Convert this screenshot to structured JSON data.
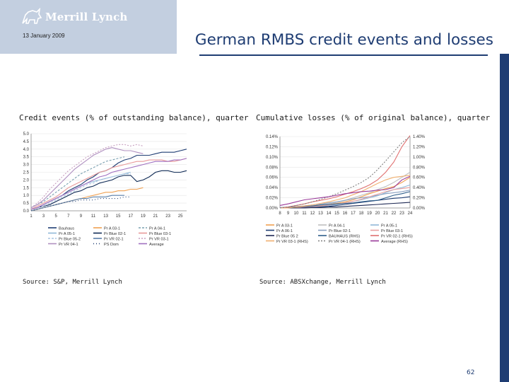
{
  "header": {
    "logo_text": "Merrill Lynch",
    "date": "13 January 2009",
    "title": "German RMBS credit events and losses"
  },
  "colors": {
    "brand_navy": "#1f3d73",
    "logo_bg": "#c3cfe0"
  },
  "left_caption": "Credit events (% of outstanding balance), quarter",
  "right_caption": "Cumulative losses (% of original balance), quarter",
  "left_source": "Source: S&P, Merrill Lynch",
  "right_source": "Source: ABSXchange, Merrill Lynch",
  "page_number": "62",
  "chart_data": [
    {
      "type": "line",
      "ylim": [
        0,
        5
      ],
      "x_ticks": [
        "1",
        "3",
        "5",
        "7",
        "9",
        "11",
        "13",
        "15",
        "17",
        "19",
        "21",
        "23",
        "25"
      ],
      "y_ticks": [
        "0.0",
        "0.5",
        "1.0",
        "1.5",
        "2.0",
        "2.5",
        "3.0",
        "3.5",
        "4.0",
        "4.5",
        "5.0"
      ],
      "legend_position": "bottom",
      "x": [
        1,
        2,
        3,
        4,
        5,
        6,
        7,
        8,
        9,
        10,
        11,
        12,
        13,
        14,
        15,
        16,
        17,
        18,
        19,
        20,
        21,
        22,
        23,
        24,
        25,
        26
      ],
      "series": [
        {
          "name": "Bauhaus",
          "color": "#1f3d73",
          "dash": "",
          "values": [
            0.1,
            0.2,
            0.4,
            0.6,
            0.8,
            1.0,
            1.3,
            1.5,
            1.7,
            2.0,
            2.2,
            2.5,
            2.6,
            2.8,
            3.1,
            3.3,
            3.4,
            3.6,
            3.6,
            3.6,
            3.7,
            3.8,
            3.8,
            3.8,
            3.9,
            4.0
          ]
        },
        {
          "name": "Pr A 03-1",
          "color": "#f0a050",
          "dash": "",
          "values": [
            0.0,
            0.1,
            0.2,
            0.3,
            0.4,
            0.5,
            0.6,
            0.7,
            0.8,
            0.9,
            1.0,
            1.1,
            1.2,
            1.2,
            1.3,
            1.3,
            1.4,
            1.4,
            1.5,
            null,
            null,
            null,
            null,
            null,
            null,
            null
          ]
        },
        {
          "name": "Pr A 04-1",
          "color": "#7aa0b0",
          "dash": "3 2",
          "values": [
            0.2,
            0.4,
            0.6,
            0.9,
            1.2,
            1.5,
            1.8,
            2.1,
            2.4,
            2.6,
            2.8,
            3.0,
            3.2,
            3.3,
            3.4,
            3.5,
            null,
            null,
            null,
            null,
            null,
            null,
            null,
            null,
            null,
            null
          ]
        },
        {
          "name": "Pr A 05-1",
          "color": "#8fb8d8",
          "dash": "",
          "values": [
            0.1,
            0.2,
            0.4,
            0.6,
            0.8,
            1.0,
            1.2,
            1.4,
            1.6,
            1.8,
            1.9,
            2.0,
            2.1,
            2.2,
            2.3,
            2.4,
            2.5,
            null,
            null,
            null,
            null,
            null,
            null,
            null,
            null,
            null
          ]
        },
        {
          "name": "Pr Blue 02-1",
          "color": "#0f2a55",
          "dash": "",
          "values": [
            0.1,
            0.2,
            0.3,
            0.4,
            0.6,
            0.8,
            1.0,
            1.2,
            1.3,
            1.5,
            1.6,
            1.8,
            1.9,
            2.0,
            2.2,
            2.3,
            2.3,
            1.9,
            2.0,
            2.2,
            2.5,
            2.6,
            2.6,
            2.5,
            2.5,
            2.6
          ]
        },
        {
          "name": "Pr Blue 03-1",
          "color": "#e89a9a",
          "dash": "",
          "values": [
            0.1,
            0.3,
            0.5,
            0.7,
            0.9,
            1.2,
            1.5,
            1.7,
            1.9,
            2.1,
            2.3,
            2.5,
            2.6,
            2.8,
            2.9,
            3.0,
            3.1,
            3.2,
            3.2,
            3.3,
            3.3,
            3.3,
            3.2,
            3.2,
            3.3,
            3.4
          ]
        },
        {
          "name": "Pr Blue 05-2",
          "color": "#a8c4e0",
          "dash": "3 2",
          "values": [
            0.1,
            0.2,
            0.3,
            0.5,
            0.7,
            0.9,
            1.1,
            1.3,
            1.5,
            1.7,
            1.8,
            2.0,
            2.1,
            2.2,
            2.3,
            2.4,
            2.4,
            null,
            null,
            null,
            null,
            null,
            null,
            null,
            null,
            null
          ]
        },
        {
          "name": "Pr VR 02-1",
          "color": "#5a7fa8",
          "dash": "",
          "values": [
            0.0,
            0.1,
            0.2,
            0.3,
            0.4,
            0.5,
            0.6,
            0.7,
            0.8,
            0.8,
            0.9,
            0.9,
            0.9,
            1.0,
            1.0,
            1.0,
            null,
            null,
            null,
            null,
            null,
            null,
            null,
            null,
            null,
            null
          ]
        },
        {
          "name": "Pr VR 03-1",
          "color": "#c8a0c0",
          "dash": "2 2",
          "values": [
            0.2,
            0.5,
            0.9,
            1.4,
            1.8,
            2.2,
            2.6,
            2.9,
            3.2,
            3.5,
            3.7,
            3.9,
            4.1,
            4.2,
            4.3,
            4.3,
            4.2,
            4.3,
            4.2,
            null,
            null,
            null,
            null,
            null,
            null,
            null
          ]
        },
        {
          "name": "Pr VR 04-1",
          "color": "#b090c0",
          "dash": "",
          "values": [
            0.2,
            0.4,
            0.7,
            1.1,
            1.5,
            1.9,
            2.3,
            2.7,
            3.0,
            3.3,
            3.6,
            3.8,
            4.0,
            4.1,
            4.0,
            3.9,
            3.9,
            3.8,
            3.7,
            null,
            null,
            null,
            null,
            null,
            null,
            null
          ]
        },
        {
          "name": "PS Dom",
          "color": "#1f3d73",
          "dash": "1 3",
          "values": [
            0.0,
            0.1,
            0.2,
            0.3,
            0.4,
            0.5,
            0.6,
            0.6,
            0.7,
            0.7,
            0.7,
            0.8,
            0.8,
            0.8,
            0.8,
            0.9,
            0.9,
            null,
            null,
            null,
            null,
            null,
            null,
            null,
            null,
            null
          ]
        },
        {
          "name": "Average",
          "color": "#a070c0",
          "dash": "",
          "values": [
            0.1,
            0.2,
            0.4,
            0.6,
            0.8,
            1.0,
            1.2,
            1.4,
            1.6,
            1.8,
            2.0,
            2.2,
            2.3,
            2.5,
            2.6,
            2.7,
            2.8,
            2.9,
            3.0,
            3.1,
            3.2,
            3.2,
            3.2,
            3.3,
            3.3,
            3.4
          ]
        }
      ]
    },
    {
      "type": "line",
      "ylim_left": [
        0,
        0.14
      ],
      "ylim_right": [
        0,
        1.4
      ],
      "x_ticks": [
        "8",
        "9",
        "10",
        "11",
        "12",
        "13",
        "14",
        "15",
        "16",
        "17",
        "18",
        "19",
        "20",
        "21",
        "22",
        "23",
        "24"
      ],
      "y_ticks_left": [
        "0.00%",
        "0.02%",
        "0.04%",
        "0.06%",
        "0.08%",
        "0.10%",
        "0.12%",
        "0.14%"
      ],
      "y_ticks_right": [
        "0.00%",
        "0.20%",
        "0.40%",
        "0.60%",
        "0.80%",
        "1.00%",
        "1.20%",
        "1.40%"
      ],
      "legend_position": "bottom",
      "x": [
        8,
        9,
        10,
        11,
        12,
        13,
        14,
        15,
        16,
        17,
        18,
        19,
        20,
        21,
        22,
        23,
        24
      ],
      "series": [
        {
          "name": "Pr A 03-1",
          "color": "#f0a050",
          "dash": "",
          "axis": "left",
          "values": [
            0.0,
            0.0,
            0.001,
            0.002,
            0.003,
            0.005,
            0.007,
            0.009,
            0.012,
            0.016,
            0.022,
            0.028,
            0.033,
            0.038,
            0.042,
            0.05,
            0.06
          ]
        },
        {
          "name": "Pr A 04-1",
          "color": "#c0c0c0",
          "dash": "",
          "axis": "left",
          "values": [
            0.0,
            0.0,
            0.001,
            0.002,
            0.004,
            0.006,
            0.008,
            0.011,
            0.015,
            0.02,
            0.025,
            0.03,
            0.036,
            0.042,
            0.05,
            0.06,
            0.07
          ]
        },
        {
          "name": "Pr A 05-1",
          "color": "#8fb8d8",
          "dash": "",
          "axis": "left",
          "values": [
            0.0,
            0.0,
            0.0,
            0.001,
            0.002,
            0.003,
            0.005,
            0.007,
            0.01,
            0.013,
            0.016,
            0.02,
            0.024,
            0.03,
            0.036,
            0.04,
            0.045
          ]
        },
        {
          "name": "Pr A 06-1",
          "color": "#1f3d73",
          "dash": "",
          "axis": "left",
          "values": [
            0.0,
            0.0,
            0.0,
            0.001,
            0.001,
            0.002,
            0.003,
            0.005,
            0.007,
            0.009,
            0.011,
            0.013,
            0.015,
            0.017,
            0.019,
            0.02,
            0.022
          ]
        },
        {
          "name": "Pr Blue 02-1",
          "color": "#8aa0c0",
          "dash": "",
          "axis": "left",
          "values": [
            0.001,
            0.002,
            0.003,
            0.004,
            0.006,
            0.008,
            0.01,
            0.012,
            0.015,
            0.018,
            0.02,
            0.022,
            0.025,
            0.028,
            0.03,
            0.032,
            0.035
          ]
        },
        {
          "name": "Pr Blue 03-1",
          "color": "#e8a0a0",
          "dash": "",
          "axis": "left",
          "values": [
            0.0,
            0.0,
            0.001,
            0.002,
            0.003,
            0.004,
            0.006,
            0.008,
            0.01,
            0.013,
            0.017,
            0.022,
            0.027,
            0.032,
            0.036,
            0.038,
            0.04
          ]
        },
        {
          "name": "Pr Blue 05 2",
          "color": "#1f2a55",
          "dash": "",
          "axis": "left",
          "values": [
            0.0,
            0.0,
            0.0,
            0.0,
            0.001,
            0.001,
            0.002,
            0.002,
            0.003,
            0.004,
            0.005,
            0.006,
            0.007,
            0.008,
            0.009,
            0.01,
            0.011
          ]
        },
        {
          "name": "BAUHAUS (RHS)",
          "color": "#2e5e8a",
          "dash": "",
          "axis": "right",
          "values": [
            0.0,
            0.01,
            0.02,
            0.03,
            0.04,
            0.06,
            0.07,
            0.08,
            0.09,
            0.1,
            0.12,
            0.14,
            0.15,
            0.2,
            0.25,
            0.28,
            0.32
          ]
        },
        {
          "name": "Pr VR 02-1 (RHS)",
          "color": "#e07070",
          "dash": "",
          "axis": "right",
          "values": [
            0.0,
            0.02,
            0.05,
            0.08,
            0.12,
            0.15,
            0.18,
            0.22,
            0.27,
            0.32,
            0.38,
            0.45,
            0.55,
            0.7,
            0.9,
            1.2,
            1.42
          ]
        },
        {
          "name": "Pr VR 03-1 (RHS)",
          "color": "#f0b070",
          "dash": "",
          "axis": "right",
          "values": [
            0.0,
            0.0,
            0.02,
            0.04,
            0.06,
            0.09,
            0.12,
            0.16,
            0.2,
            0.26,
            0.32,
            0.4,
            0.48,
            0.55,
            0.6,
            0.62,
            0.64
          ]
        },
        {
          "name": "Pr VR 04-1 (RHS)",
          "color": "#808080",
          "dash": "2 2",
          "axis": "right",
          "values": [
            0.0,
            0.02,
            0.05,
            0.08,
            0.12,
            0.17,
            0.22,
            0.28,
            0.35,
            0.42,
            0.5,
            0.6,
            0.75,
            0.92,
            1.1,
            1.28,
            1.4
          ]
        },
        {
          "name": "Average (RHS)",
          "color": "#9a3a9a",
          "dash": "",
          "axis": "right",
          "values": [
            0.05,
            0.08,
            0.12,
            0.16,
            0.18,
            0.2,
            0.22,
            0.25,
            0.28,
            0.3,
            0.32,
            0.33,
            0.35,
            0.36,
            0.4,
            0.55,
            0.62
          ]
        }
      ]
    }
  ]
}
